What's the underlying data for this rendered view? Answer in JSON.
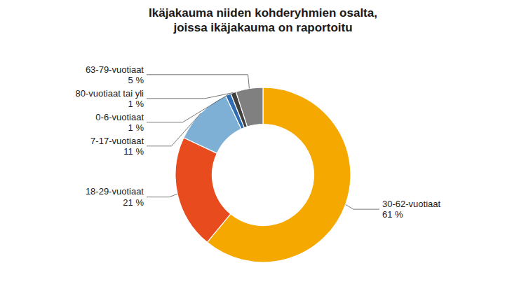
{
  "chart_data": {
    "type": "donut",
    "title": "Ikäjakauma niiden kohderyhmien osalta,\njoissa ikäjakauma on raportoitu",
    "categories": [
      "30-62-vuotiaat\n61 %",
      "18-29-vuotiaat\n21 %",
      "7-17-vuotiaat\n11 %",
      "0-6-vuotiaat\n1 %",
      "80-vuotiaat tai yli\n1 %",
      "63-79-vuotiaat\n5 %"
    ],
    "values": [
      61,
      21,
      11,
      1,
      1,
      5
    ],
    "colors": [
      "#F5A800",
      "#E84B1E",
      "#7EB0D5",
      "#2E6DB4",
      "#404040",
      "#808080"
    ]
  }
}
